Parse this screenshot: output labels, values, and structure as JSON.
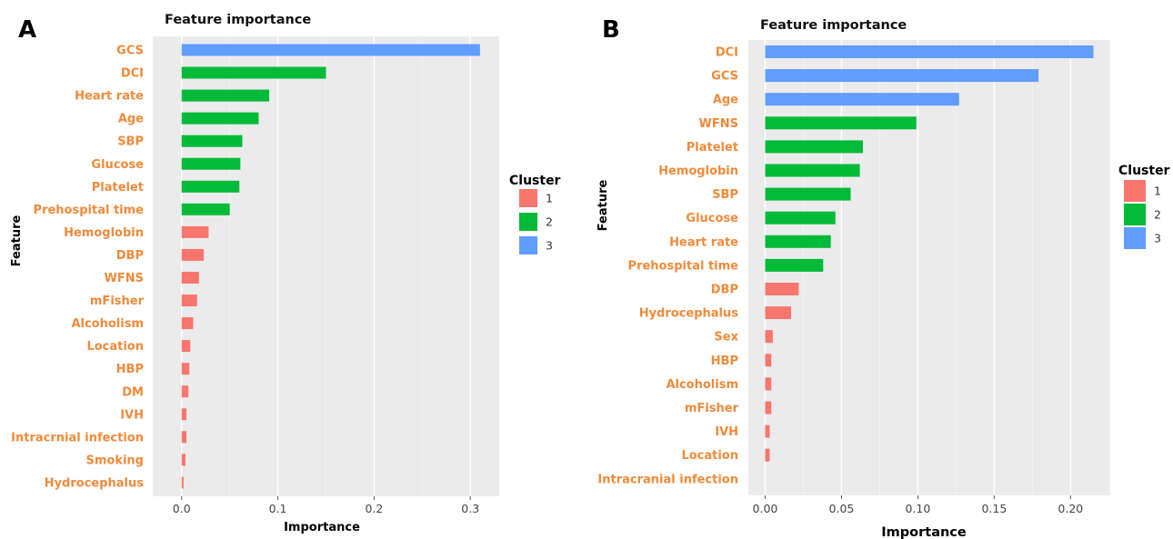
{
  "cluster_colors": {
    "1": "#F8766D",
    "2": "#00BA38",
    "3": "#619CFF"
  },
  "chart_data": [
    {
      "panel": "A",
      "type": "bar",
      "orientation": "horizontal",
      "title": "Feature importance",
      "xlabel": "Importance",
      "ylabel": "Feature",
      "xlim": [
        -0.03,
        0.33
      ],
      "xticks": [
        0.0,
        0.1,
        0.2,
        0.3
      ],
      "xtick_labels": [
        "0.0",
        "0.1",
        "0.2",
        "0.3"
      ],
      "grid": true,
      "legend": {
        "title": "Cluster",
        "entries": [
          "1",
          "2",
          "3"
        ],
        "placement": "right"
      },
      "categories": [
        "GCS",
        "DCI",
        "Heart rate",
        "Age",
        "SBP",
        "Glucose",
        "Platelet",
        "Prehospital time",
        "Hemoglobin",
        "DBP",
        "WFNS",
        "mFisher",
        "Alcoholism",
        "Location",
        "HBP",
        "DM",
        "IVH",
        "Intracrnial infection",
        "Smoking",
        "Hydrocephalus"
      ],
      "values": [
        0.31,
        0.15,
        0.091,
        0.08,
        0.063,
        0.061,
        0.06,
        0.05,
        0.028,
        0.023,
        0.018,
        0.016,
        0.012,
        0.009,
        0.008,
        0.007,
        0.005,
        0.005,
        0.004,
        0.002
      ],
      "clusters": [
        "3",
        "2",
        "2",
        "2",
        "2",
        "2",
        "2",
        "2",
        "1",
        "1",
        "1",
        "1",
        "1",
        "1",
        "1",
        "1",
        "1",
        "1",
        "1",
        "1"
      ]
    },
    {
      "panel": "B",
      "type": "bar",
      "orientation": "horizontal",
      "title": "Feature importance",
      "xlabel": "Importance",
      "ylabel": "Feature",
      "xlim": [
        -0.011,
        0.226
      ],
      "xticks": [
        0.0,
        0.05,
        0.1,
        0.15,
        0.2
      ],
      "xtick_labels": [
        "0.00",
        "0.05",
        "0.10",
        "0.15",
        "0.20"
      ],
      "grid": true,
      "legend": {
        "title": "Cluster",
        "entries": [
          "1",
          "2",
          "3"
        ],
        "placement": "right"
      },
      "categories": [
        "DCI",
        "GCS",
        "Age",
        "WFNS",
        "Platelet",
        "Hemoglobin",
        "SBP",
        "Glucose",
        "Heart rate",
        "Prehospital time",
        "DBP",
        "Hydrocephalus",
        "Sex",
        "HBP",
        "Alcoholism",
        "mFisher",
        "IVH",
        "Location",
        "Intracranial infection"
      ],
      "values": [
        0.215,
        0.179,
        0.127,
        0.099,
        0.064,
        0.062,
        0.056,
        0.046,
        0.043,
        0.038,
        0.022,
        0.017,
        0.005,
        0.004,
        0.004,
        0.004,
        0.003,
        0.003,
        0.0
      ],
      "clusters": [
        "3",
        "3",
        "3",
        "2",
        "2",
        "2",
        "2",
        "2",
        "2",
        "2",
        "1",
        "1",
        "1",
        "1",
        "1",
        "1",
        "1",
        "1",
        "1"
      ]
    }
  ]
}
